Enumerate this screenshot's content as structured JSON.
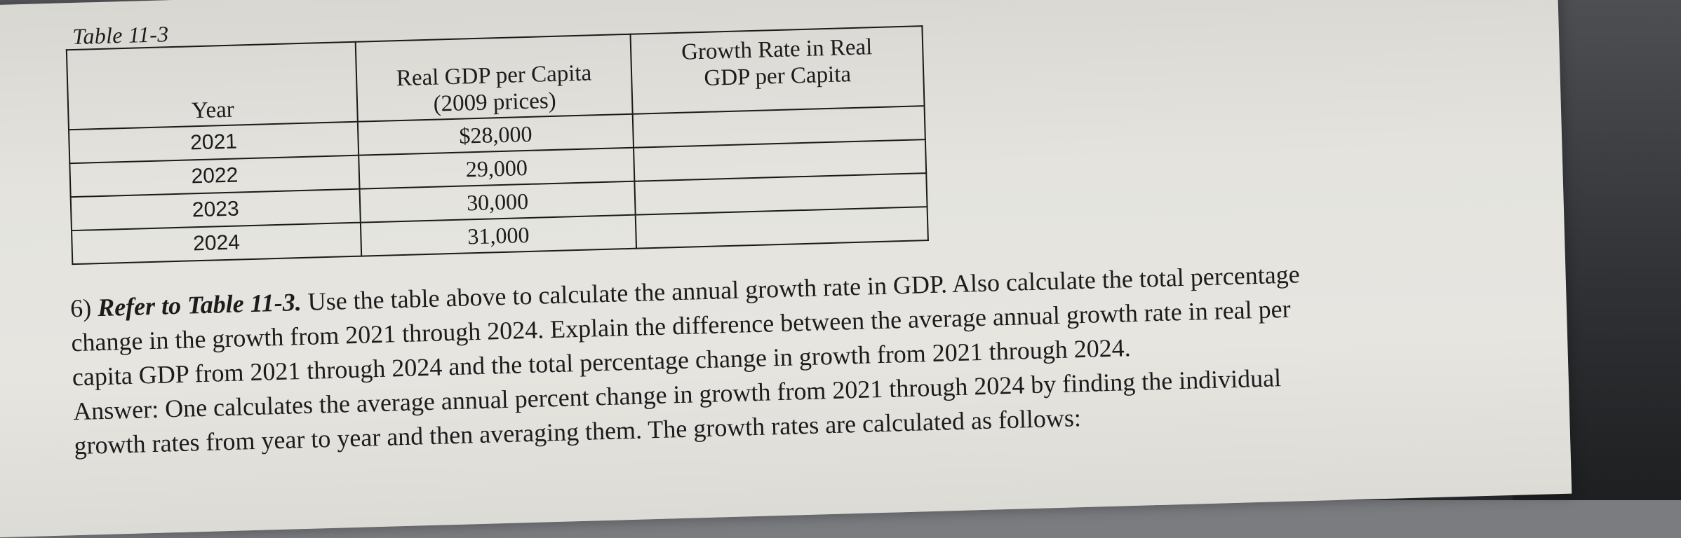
{
  "table": {
    "caption": "Table 11-3",
    "headers": {
      "year": "Year",
      "gdp_line1": "Real GDP per Capita",
      "gdp_line2": "(2009 prices)",
      "growth_line1": "Growth Rate in Real",
      "growth_line2": "GDP per Capita"
    },
    "rows": [
      {
        "year": "2021",
        "gdp": "$28,000",
        "growth": ""
      },
      {
        "year": "2022",
        "gdp": "29,000",
        "growth": ""
      },
      {
        "year": "2023",
        "gdp": "30,000",
        "growth": ""
      },
      {
        "year": "2024",
        "gdp": "31,000",
        "growth": ""
      }
    ]
  },
  "question": {
    "number": "6)",
    "reference": "Refer to Table 11-3.",
    "line1_rest": " Use the table above to calculate the annual growth rate in GDP. Also calculate the total percentage",
    "line2": "change in the growth from 2021 through 2024. Explain the difference between the average annual growth rate in real per",
    "line3": "capita GDP from 2021 through 2024 and the total percentage change in growth from 2021 through 2024.",
    "line4": "Answer:  One calculates the average annual percent change in growth from 2021 through 2024 by finding the individual",
    "line5": "growth rates from year to year and then averaging them. The growth rates are calculated as follows:"
  }
}
